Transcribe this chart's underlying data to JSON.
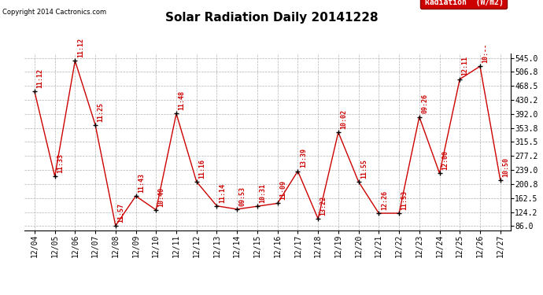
{
  "title": "Solar Radiation Daily 20141228",
  "copyright": "Copyright 2014 Cactronics.com",
  "legend_label": "Radiation  (W/m2)",
  "y_ticks": [
    86.0,
    124.2,
    162.5,
    200.8,
    239.0,
    277.2,
    315.5,
    353.8,
    392.0,
    430.2,
    468.5,
    506.8,
    545.0
  ],
  "ylim": [
    75,
    558
  ],
  "dates": [
    "12/04",
    "12/05",
    "12/06",
    "12/07",
    "12/08",
    "12/09",
    "12/10",
    "12/11",
    "12/12",
    "12/13",
    "12/14",
    "12/15",
    "12/16",
    "12/17",
    "12/18",
    "12/19",
    "12/20",
    "12/21",
    "12/22",
    "12/23",
    "12/24",
    "12/25",
    "12/26",
    "12/27"
  ],
  "values": [
    453,
    222,
    537,
    362,
    87,
    168,
    130,
    393,
    207,
    141,
    132,
    140,
    148,
    236,
    106,
    342,
    207,
    121,
    121,
    384,
    230,
    487,
    522,
    212
  ],
  "annotations": [
    "11:12",
    "11:33",
    "11:12",
    "11:25",
    "11:57",
    "11:43",
    "10:40",
    "11:48",
    "11:16",
    "11:14",
    "09:53",
    "10:31",
    "11:09",
    "13:39",
    "13:22",
    "10:02",
    "11:55",
    "12:26",
    "11:53",
    "09:26",
    "12:00",
    "12:11",
    "10:--",
    "10:50"
  ],
  "line_color": "#cc0000",
  "marker_color": "#000000",
  "bg_color": "#ffffff",
  "grid_color": "#aaaaaa",
  "annotation_color": "#cc0000",
  "legend_bg": "#cc0000",
  "legend_fg": "#ffffff",
  "title_fontsize": 11,
  "tick_fontsize": 7,
  "annotation_fontsize": 6,
  "copyright_fontsize": 6
}
